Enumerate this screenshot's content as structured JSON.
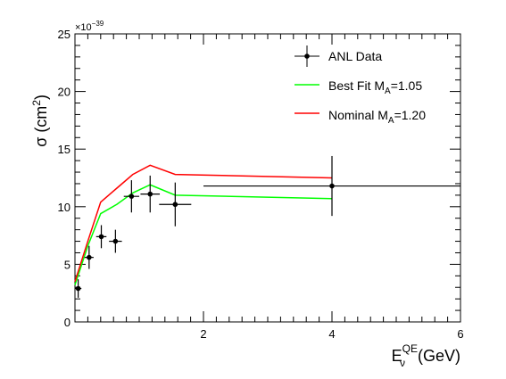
{
  "chart_data": {
    "type": "scatter",
    "xlabel": {
      "main": "E",
      "sub": "ν",
      "sup": "QE",
      "unit": "(GeV)"
    },
    "ylabel": {
      "main": "σ (cm",
      "sup": "2",
      "close": ")"
    },
    "xlim": [
      0,
      6
    ],
    "ylim": [
      0,
      25
    ],
    "y_multiplier": "×10",
    "y_multiplier_exp": "−39",
    "x_ticks": [
      {
        "value": 2,
        "label": "2"
      },
      {
        "value": 4,
        "label": "4"
      },
      {
        "value": 6,
        "label": "6"
      }
    ],
    "y_ticks": [
      {
        "value": 0,
        "label": "0"
      },
      {
        "value": 5,
        "label": "5"
      },
      {
        "value": 10,
        "label": "10"
      },
      {
        "value": 15,
        "label": "15"
      },
      {
        "value": 20,
        "label": "20"
      },
      {
        "value": 25,
        "label": "25"
      }
    ],
    "legend_position": "top-right",
    "series": [
      {
        "name": "ANL Data",
        "kind": "errorbar",
        "color": "#000000",
        "points": [
          {
            "x": 0.05,
            "y": 2.9,
            "xerr": 0.05,
            "yerr": 0.8
          },
          {
            "x": 0.22,
            "y": 5.6,
            "xerr": 0.07,
            "yerr": 1.0
          },
          {
            "x": 0.41,
            "y": 7.4,
            "xerr": 0.08,
            "yerr": 1.0
          },
          {
            "x": 0.63,
            "y": 7.0,
            "xerr": 0.1,
            "yerr": 1.0
          },
          {
            "x": 0.88,
            "y": 10.9,
            "xerr": 0.12,
            "yerr": 1.4
          },
          {
            "x": 1.17,
            "y": 11.1,
            "xerr": 0.15,
            "yerr": 1.6
          },
          {
            "x": 1.56,
            "y": 10.2,
            "xerr": 0.25,
            "yerr": 1.9
          },
          {
            "x": 4.0,
            "y": 11.8,
            "xerr": 2.0,
            "yerr": 2.6
          }
        ]
      },
      {
        "name": "Best Fit M",
        "name_sub": "A",
        "name_tail": "=1.05",
        "kind": "line",
        "color": "#00ff00",
        "x": [
          0.0,
          0.2,
          0.4,
          0.65,
          0.9,
          1.17,
          1.56,
          4.0
        ],
        "y": [
          3.2,
          6.6,
          9.4,
          10.2,
          11.2,
          11.9,
          11.0,
          10.7
        ]
      },
      {
        "name": "Nominal M",
        "name_sub": "A",
        "name_tail": "=1.20",
        "kind": "line",
        "color": "#ff0000",
        "x": [
          0.0,
          0.2,
          0.4,
          0.65,
          0.9,
          1.17,
          1.56,
          4.0
        ],
        "y": [
          3.5,
          7.0,
          10.4,
          11.6,
          12.8,
          13.6,
          12.8,
          12.5
        ]
      }
    ]
  }
}
